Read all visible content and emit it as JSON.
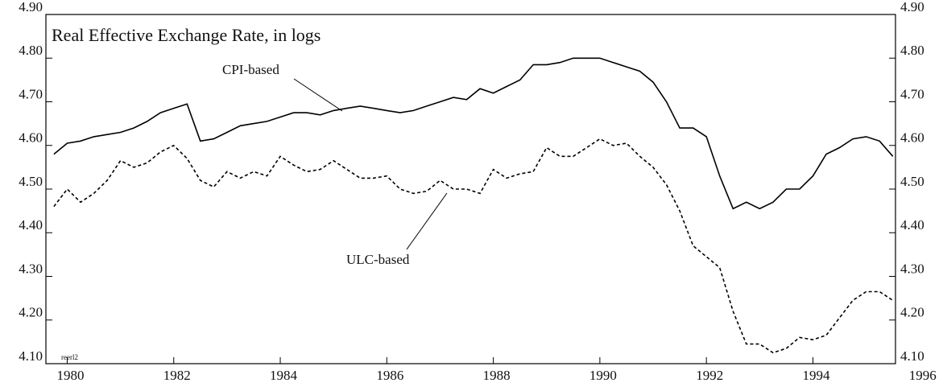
{
  "chart_data": {
    "type": "line",
    "title": "Real Effective Exchange Rate, in logs",
    "source_tag": "reerl2",
    "x": [
      1979.75,
      1980,
      1980.25,
      1980.5,
      1980.75,
      1981,
      1981.25,
      1981.5,
      1981.75,
      1982,
      1982.25,
      1982.5,
      1982.75,
      1983,
      1983.25,
      1983.5,
      1983.75,
      1984,
      1984.25,
      1984.5,
      1984.75,
      1985,
      1985.25,
      1985.5,
      1985.75,
      1986,
      1986.25,
      1986.5,
      1986.75,
      1987,
      1987.25,
      1987.5,
      1987.75,
      1988,
      1988.25,
      1988.5,
      1988.75,
      1989,
      1989.25,
      1989.5,
      1989.75,
      1990,
      1990.25,
      1990.5,
      1990.75,
      1991,
      1991.25,
      1991.5,
      1991.75,
      1992,
      1992.25,
      1992.5,
      1992.75,
      1993,
      1993.25,
      1993.5,
      1993.75,
      1994,
      1994.25,
      1994.5,
      1994.75,
      1995,
      1995.25,
      1995.5
    ],
    "series": [
      {
        "name": "CPI-based",
        "color": "#000000",
        "dash": "solid",
        "values": [
          4.58,
          4.605,
          4.61,
          4.62,
          4.625,
          4.63,
          4.64,
          4.655,
          4.675,
          4.685,
          4.695,
          4.61,
          4.615,
          4.63,
          4.645,
          4.65,
          4.655,
          4.665,
          4.675,
          4.675,
          4.67,
          4.68,
          4.685,
          4.69,
          4.685,
          4.68,
          4.675,
          4.68,
          4.69,
          4.7,
          4.71,
          4.705,
          4.73,
          4.72,
          4.735,
          4.75,
          4.785,
          4.785,
          4.79,
          4.8,
          4.8,
          4.8,
          4.79,
          4.78,
          4.77,
          4.745,
          4.7,
          4.64,
          4.64,
          4.62,
          4.53,
          4.455,
          4.47,
          4.455,
          4.47,
          4.5,
          4.5,
          4.53,
          4.58,
          4.595,
          4.615,
          4.62,
          4.61,
          4.575
        ]
      },
      {
        "name": "ULC-based",
        "color": "#000000",
        "dash": "dashed",
        "values": [
          4.46,
          4.5,
          4.47,
          4.49,
          4.52,
          4.565,
          4.55,
          4.56,
          4.585,
          4.6,
          4.57,
          4.52,
          4.505,
          4.54,
          4.525,
          4.54,
          4.53,
          4.575,
          4.555,
          4.54,
          4.545,
          4.565,
          4.545,
          4.525,
          4.525,
          4.53,
          4.5,
          4.49,
          4.495,
          4.52,
          4.5,
          4.5,
          4.49,
          4.545,
          4.525,
          4.535,
          4.54,
          4.595,
          4.575,
          4.575,
          4.595,
          4.615,
          4.6,
          4.605,
          4.575,
          4.55,
          4.51,
          4.45,
          4.37,
          4.345,
          4.32,
          4.22,
          4.145,
          4.145,
          4.125,
          4.135,
          4.16,
          4.155,
          4.165,
          4.205,
          4.245,
          4.265,
          4.265,
          4.245
        ]
      }
    ],
    "xlim": [
      1979.6,
      1995.55
    ],
    "xticks": [
      1980,
      1982,
      1984,
      1986,
      1988,
      1990,
      1992,
      1994,
      1996
    ],
    "ylim": [
      4.1,
      4.9
    ],
    "yticks": [
      {
        "value": 4.1,
        "label": "4.10"
      },
      {
        "value": 4.2,
        "label": "4.20"
      },
      {
        "value": 4.3,
        "label": "4.30"
      },
      {
        "value": 4.4,
        "label": "4.40"
      },
      {
        "value": 4.5,
        "label": "4.50"
      },
      {
        "value": 4.6,
        "label": "4.60"
      },
      {
        "value": 4.7,
        "label": "4.70"
      },
      {
        "value": 4.8,
        "label": "4.80"
      },
      {
        "value": 4.9,
        "label": "4.90"
      }
    ],
    "right_axis_mirror": true
  }
}
